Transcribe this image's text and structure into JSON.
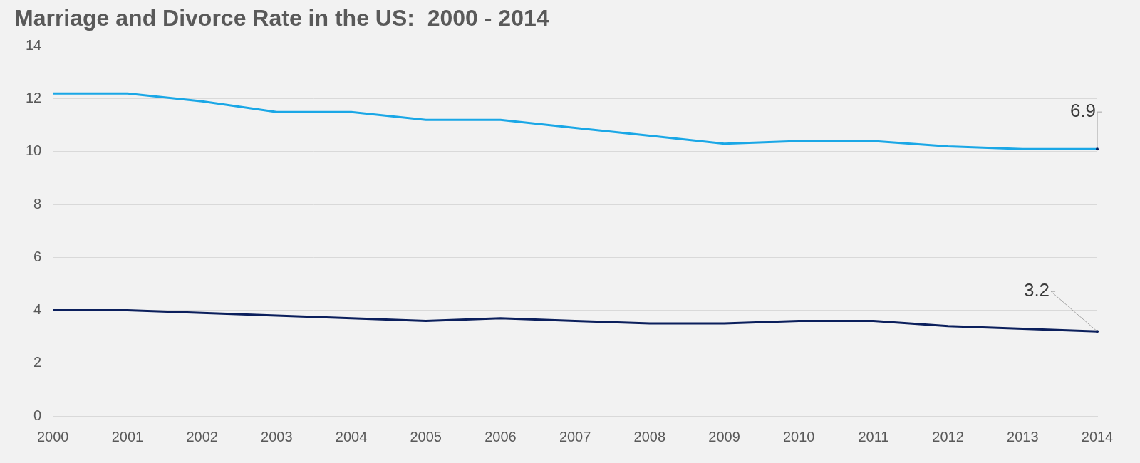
{
  "chart_data": {
    "type": "line",
    "title": "Marriage and Divorce Rate in the US:  2000 - 2014",
    "categories": [
      "2000",
      "2001",
      "2002",
      "2003",
      "2004",
      "2005",
      "2006",
      "2007",
      "2008",
      "2009",
      "2010",
      "2011",
      "2012",
      "2013",
      "2014"
    ],
    "stacked": true,
    "data_labels": true,
    "series": [
      {
        "color": "#0b1f5c",
        "values": [
          4.0,
          4.0,
          3.9,
          3.8,
          3.7,
          3.6,
          3.7,
          3.6,
          3.5,
          3.5,
          3.6,
          3.6,
          3.4,
          3.3,
          3.2
        ],
        "value_labels": [
          null,
          null,
          null,
          null,
          null,
          null,
          null,
          null,
          null,
          null,
          null,
          null,
          null,
          null,
          "3.2"
        ]
      },
      {
        "color": "#1aa7e6",
        "values": [
          8.2,
          8.2,
          8.0,
          7.7,
          7.8,
          7.6,
          7.5,
          7.3,
          7.1,
          6.8,
          6.8,
          6.8,
          6.8,
          6.8,
          6.9
        ],
        "value_labels": [
          null,
          null,
          null,
          null,
          null,
          null,
          null,
          null,
          null,
          null,
          null,
          null,
          null,
          null,
          "6.9"
        ]
      }
    ],
    "ylim": [
      0,
      14
    ],
    "yticks": [
      0,
      2,
      4,
      6,
      8,
      10,
      12,
      14
    ],
    "grid": true
  }
}
